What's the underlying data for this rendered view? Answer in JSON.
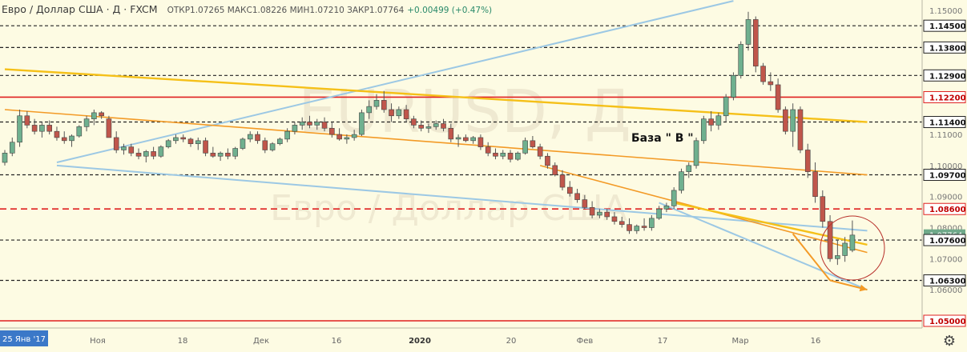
{
  "header": {
    "title": "Евро / Доллар США · Д · FXCM",
    "ohlc": "ОТКР1.07265  МАКС1.08226  МИН1.07210  ЗАКР1.07764",
    "change": "+0.00499 (+0.47%)"
  },
  "watermark": {
    "symbol": "EURUSD, Д",
    "name": "Евро / Доллар США"
  },
  "annotation": "База \" В \"",
  "colors": {
    "background": "#fdfbe3",
    "up_candle": "#6fb08f",
    "down_candle": "#c0564b",
    "red_level": "#e02020",
    "yellow_line": "#f5c018",
    "orange_line": "#f39a26",
    "blue_line": "#9cc8e4",
    "price_label_bg": "#ffffff",
    "current_label_bg": "#6fa98a"
  },
  "chart_data": {
    "type": "candlestick",
    "symbol": "EURUSD",
    "timeframe": "Д",
    "y_range": [
      1.045,
      1.153
    ],
    "price_labels": [
      "1.15000",
      "1.14500",
      "1.13800",
      "1.12900",
      "1.12200",
      "1.11400",
      "1.11000",
      "1.10000",
      "1.09700",
      "1.09000",
      "1.08600",
      "1.08000",
      "1.07764",
      "1.07600",
      "1.07000",
      "1.06300",
      "1.06000",
      "1.05000"
    ],
    "current_price": "1.07764",
    "x_labels": [
      "25 Янв '17",
      "Ноя",
      "18",
      "Дек",
      "16",
      "2020",
      "20",
      "Фев",
      "17",
      "Мар",
      "16"
    ],
    "levels": [
      {
        "price": 1.145,
        "label": "1.14500",
        "style": "dashed",
        "color": "#222222"
      },
      {
        "price": 1.138,
        "label": "1.13800",
        "style": "dashed",
        "color": "#222222"
      },
      {
        "price": 1.129,
        "label": "1.12900",
        "style": "dashed",
        "color": "#222222"
      },
      {
        "price": 1.122,
        "label": "1.12200",
        "style": "solid",
        "color": "#e02020"
      },
      {
        "price": 1.114,
        "label": "1.11400",
        "style": "dashed",
        "color": "#222222"
      },
      {
        "price": 1.097,
        "label": "1.09700",
        "style": "dashed",
        "color": "#222222"
      },
      {
        "price": 1.086,
        "label": "1.08600",
        "style": "dashed",
        "color": "#e02020"
      },
      {
        "price": 1.076,
        "label": "1.07600",
        "style": "dashed",
        "color": "#222222"
      },
      {
        "price": 1.063,
        "label": "1.06300",
        "style": "dashed",
        "color": "#222222"
      },
      {
        "price": 1.05,
        "label": "1.05000",
        "style": "solid",
        "color": "#e02020"
      }
    ],
    "candles": [
      [
        1.101,
        1.105,
        1.1,
        1.104
      ],
      [
        1.104,
        1.109,
        1.103,
        1.1075
      ],
      [
        1.1075,
        1.118,
        1.106,
        1.116
      ],
      [
        1.116,
        1.1175,
        1.112,
        1.113
      ],
      [
        1.113,
        1.115,
        1.11,
        1.111
      ],
      [
        1.111,
        1.114,
        1.109,
        1.113
      ],
      [
        1.113,
        1.1145,
        1.11,
        1.111
      ],
      [
        1.111,
        1.1125,
        1.108,
        1.109
      ],
      [
        1.109,
        1.111,
        1.107,
        1.108
      ],
      [
        1.108,
        1.11,
        1.106,
        1.1095
      ],
      [
        1.1095,
        1.113,
        1.109,
        1.1125
      ],
      [
        1.1125,
        1.116,
        1.111,
        1.115
      ],
      [
        1.115,
        1.118,
        1.113,
        1.117
      ],
      [
        1.117,
        1.1175,
        1.115,
        1.116
      ],
      [
        1.115,
        1.116,
        1.109,
        1.109
      ],
      [
        1.109,
        1.111,
        1.104,
        1.105
      ],
      [
        1.105,
        1.107,
        1.1035,
        1.106
      ],
      [
        1.106,
        1.107,
        1.103,
        1.104
      ],
      [
        1.104,
        1.1055,
        1.102,
        1.103
      ],
      [
        1.103,
        1.105,
        1.101,
        1.1045
      ],
      [
        1.1045,
        1.106,
        1.102,
        1.103
      ],
      [
        1.103,
        1.1065,
        1.1025,
        1.106
      ],
      [
        1.106,
        1.1085,
        1.1055,
        1.108
      ],
      [
        1.108,
        1.11,
        1.107,
        1.109
      ],
      [
        1.109,
        1.11,
        1.1075,
        1.1085
      ],
      [
        1.1085,
        1.109,
        1.106,
        1.107
      ],
      [
        1.107,
        1.109,
        1.105,
        1.108
      ],
      [
        1.108,
        1.109,
        1.103,
        1.104
      ],
      [
        1.104,
        1.106,
        1.1025,
        1.103
      ],
      [
        1.103,
        1.1045,
        1.1015,
        1.104
      ],
      [
        1.104,
        1.1055,
        1.102,
        1.103
      ],
      [
        1.103,
        1.106,
        1.102,
        1.1055
      ],
      [
        1.1055,
        1.109,
        1.105,
        1.1085
      ],
      [
        1.1085,
        1.111,
        1.1075,
        1.11
      ],
      [
        1.11,
        1.111,
        1.107,
        1.108
      ],
      [
        1.108,
        1.109,
        1.104,
        1.105
      ],
      [
        1.105,
        1.1075,
        1.1045,
        1.107
      ],
      [
        1.107,
        1.109,
        1.1065,
        1.1085
      ],
      [
        1.1085,
        1.112,
        1.1075,
        1.111
      ],
      [
        1.111,
        1.114,
        1.11,
        1.113
      ],
      [
        1.113,
        1.1155,
        1.1115,
        1.114
      ],
      [
        1.114,
        1.116,
        1.112,
        1.113
      ],
      [
        1.113,
        1.115,
        1.1115,
        1.114
      ],
      [
        1.114,
        1.1155,
        1.111,
        1.112
      ],
      [
        1.112,
        1.114,
        1.109,
        1.11
      ],
      [
        1.11,
        1.112,
        1.108,
        1.1085
      ],
      [
        1.1085,
        1.11,
        1.107,
        1.109
      ],
      [
        1.109,
        1.1115,
        1.108,
        1.11
      ],
      [
        1.11,
        1.118,
        1.1095,
        1.117
      ],
      [
        1.117,
        1.121,
        1.115,
        1.119
      ],
      [
        1.119,
        1.123,
        1.118,
        1.121
      ],
      [
        1.121,
        1.124,
        1.117,
        1.118
      ],
      [
        1.118,
        1.12,
        1.114,
        1.116
      ],
      [
        1.116,
        1.119,
        1.115,
        1.118
      ],
      [
        1.118,
        1.1195,
        1.114,
        1.115
      ],
      [
        1.115,
        1.116,
        1.112,
        1.113
      ],
      [
        1.113,
        1.1145,
        1.111,
        1.112
      ],
      [
        1.112,
        1.1135,
        1.1105,
        1.1125
      ],
      [
        1.1125,
        1.1145,
        1.1115,
        1.1135
      ],
      [
        1.1135,
        1.115,
        1.111,
        1.112
      ],
      [
        1.112,
        1.1135,
        1.1075,
        1.1085
      ],
      [
        1.1085,
        1.11,
        1.106,
        1.109
      ],
      [
        1.109,
        1.11,
        1.1075,
        1.108
      ],
      [
        1.108,
        1.1095,
        1.107,
        1.109
      ],
      [
        1.109,
        1.11,
        1.105,
        1.106
      ],
      [
        1.106,
        1.1075,
        1.103,
        1.104
      ],
      [
        1.104,
        1.1055,
        1.102,
        1.103
      ],
      [
        1.103,
        1.105,
        1.102,
        1.104
      ],
      [
        1.104,
        1.105,
        1.101,
        1.102
      ],
      [
        1.102,
        1.1045,
        1.1015,
        1.104
      ],
      [
        1.104,
        1.109,
        1.1035,
        1.108
      ],
      [
        1.108,
        1.1095,
        1.1055,
        1.106
      ],
      [
        1.106,
        1.107,
        1.102,
        1.103
      ],
      [
        1.103,
        1.104,
        1.099,
        1.1
      ],
      [
        1.1,
        1.101,
        1.0965,
        1.097
      ],
      [
        1.097,
        1.0985,
        1.092,
        1.093
      ],
      [
        1.093,
        1.095,
        1.09,
        1.091
      ],
      [
        1.091,
        1.0925,
        1.088,
        1.089
      ],
      [
        1.089,
        1.0905,
        1.086,
        1.0865
      ],
      [
        1.0865,
        1.0885,
        1.083,
        1.084
      ],
      [
        1.084,
        1.086,
        1.083,
        1.085
      ],
      [
        1.085,
        1.086,
        1.0825,
        1.0835
      ],
      [
        1.0835,
        1.085,
        1.081,
        1.082
      ],
      [
        1.082,
        1.0835,
        1.08,
        1.081
      ],
      [
        1.081,
        1.083,
        1.078,
        1.079
      ],
      [
        1.079,
        1.081,
        1.078,
        1.0805
      ],
      [
        1.0805,
        1.083,
        1.079,
        1.08
      ],
      [
        1.08,
        1.084,
        1.079,
        1.083
      ],
      [
        1.083,
        1.087,
        1.0825,
        1.086
      ],
      [
        1.086,
        1.088,
        1.085,
        1.087
      ],
      [
        1.087,
        1.093,
        1.086,
        1.092
      ],
      [
        1.092,
        1.099,
        1.091,
        1.098
      ],
      [
        1.098,
        1.101,
        1.096,
        1.1
      ],
      [
        1.1,
        1.109,
        1.099,
        1.108
      ],
      [
        1.108,
        1.116,
        1.107,
        1.115
      ],
      [
        1.115,
        1.1175,
        1.111,
        1.113
      ],
      [
        1.113,
        1.117,
        1.1115,
        1.116
      ],
      [
        1.116,
        1.123,
        1.114,
        1.122
      ],
      [
        1.122,
        1.13,
        1.121,
        1.129
      ],
      [
        1.129,
        1.14,
        1.128,
        1.139
      ],
      [
        1.139,
        1.1495,
        1.137,
        1.147
      ],
      [
        1.147,
        1.148,
        1.13,
        1.132
      ],
      [
        1.132,
        1.133,
        1.126,
        1.127
      ],
      [
        1.127,
        1.13,
        1.124,
        1.126
      ],
      [
        1.126,
        1.128,
        1.117,
        1.118
      ],
      [
        1.118,
        1.119,
        1.11,
        1.111
      ],
      [
        1.111,
        1.12,
        1.106,
        1.118
      ],
      [
        1.118,
        1.119,
        1.104,
        1.105
      ],
      [
        1.105,
        1.107,
        1.096,
        1.098
      ],
      [
        1.098,
        1.101,
        1.088,
        1.09
      ],
      [
        1.09,
        1.092,
        1.08,
        1.082
      ],
      [
        1.082,
        1.084,
        1.069,
        1.07
      ],
      [
        1.07,
        1.076,
        1.068,
        1.071
      ],
      [
        1.071,
        1.077,
        1.069,
        1.075
      ],
      [
        1.0727,
        1.0823,
        1.0721,
        1.0776
      ]
    ],
    "overlays": {
      "yellow": [
        [
          0,
          1.131,
          116,
          1.114
        ],
        [
          90,
          1.088,
          116,
          1.0745
        ]
      ],
      "orange": [
        [
          0,
          1.118,
          116,
          1.097
        ],
        [
          72,
          1.1,
          116,
          1.072
        ]
      ],
      "blue": [
        [
          7,
          1.101,
          98,
          1.153
        ],
        [
          7,
          1.1,
          116,
          1.079
        ],
        [
          88,
          1.088,
          116,
          1.06
        ]
      ],
      "arrow_lines": [
        [
          106,
          1.078,
          111,
          1.063
        ],
        [
          111,
          1.063,
          116,
          1.06
        ]
      ]
    }
  }
}
